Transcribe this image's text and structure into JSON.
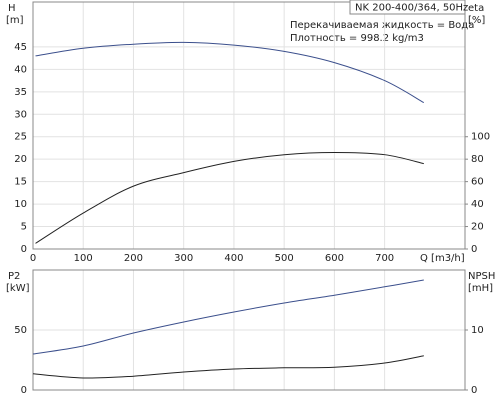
{
  "chart_data": [
    {
      "type": "line",
      "title": "NK 200-400/364, 50Hz",
      "annotations": [
        "Перекачиваемая жидкость = Вода",
        "Плотность = 998.2 kg/m3"
      ],
      "xlabel": "Q [m3/h]",
      "xlim": [
        0,
        860
      ],
      "xticks": [
        0,
        100,
        200,
        300,
        400,
        500,
        600,
        700
      ],
      "ylabel": "H",
      "ylabel_unit": "[m]",
      "ylim": [
        0,
        55
      ],
      "yticks": [
        0,
        5,
        10,
        15,
        20,
        25,
        30,
        35,
        40,
        45
      ],
      "y2label": "eta",
      "y2label_unit": "[%]",
      "y2lim": [
        0,
        220
      ],
      "y2ticks": [
        0,
        20,
        40,
        60,
        80,
        100
      ],
      "grid": true,
      "x": [
        5,
        100,
        200,
        300,
        400,
        500,
        600,
        700,
        778
      ],
      "series": [
        {
          "name": "H",
          "color": "#3b4f8c",
          "values": [
            43,
            44.7,
            45.6,
            46,
            45.4,
            44,
            41.5,
            37.5,
            32.6
          ]
        },
        {
          "name": "eta",
          "color": "#222222",
          "axis": "y2",
          "values": [
            5,
            32,
            56,
            68,
            78,
            84,
            86,
            84,
            76
          ]
        }
      ]
    },
    {
      "type": "line",
      "xlim": [
        0,
        860
      ],
      "ylabel": "P2",
      "ylabel_unit": "[kW]",
      "ylim": [
        0,
        100
      ],
      "yticks": [
        0,
        50
      ],
      "y2label": "NPSH",
      "y2label_unit": "[mH]",
      "y2lim": [
        0,
        20
      ],
      "y2ticks": [
        0,
        10
      ],
      "grid": true,
      "x": [
        0,
        100,
        200,
        300,
        400,
        500,
        600,
        700,
        778
      ],
      "series": [
        {
          "name": "P2",
          "color": "#3b4f8c",
          "values": [
            30,
            36.7,
            47.5,
            56.7,
            65,
            72.5,
            79,
            86,
            91.7
          ]
        },
        {
          "name": "NPSH",
          "color": "#222222",
          "axis": "y2",
          "values": [
            2.7,
            2,
            2.3,
            3,
            3.5,
            3.7,
            3.8,
            4.5,
            5.7
          ]
        }
      ]
    }
  ]
}
